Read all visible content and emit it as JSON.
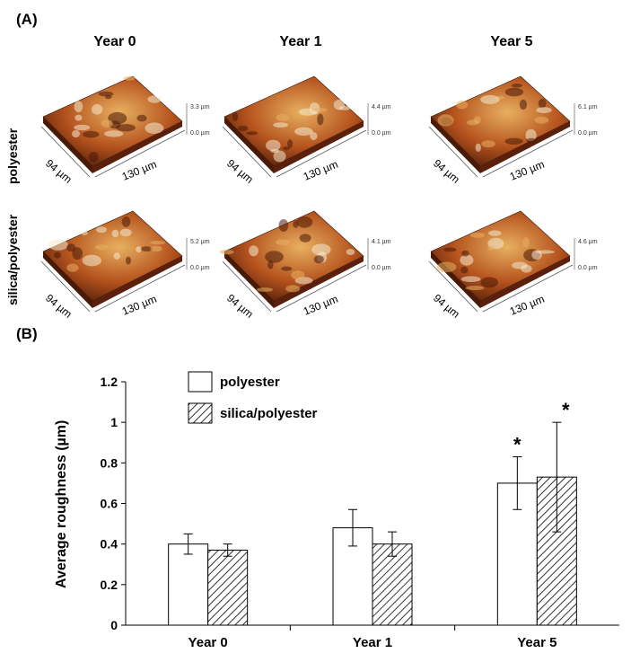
{
  "panel_a": {
    "label": "(A)",
    "columns": [
      "Year 0",
      "Year 1",
      "Year 5"
    ],
    "rows": [
      "polyester",
      "silica/polyester"
    ],
    "tiles": [
      {
        "row": "polyester",
        "col": "Year 0",
        "height_top": "3.3 µm",
        "height_bottom": "0.0 µm",
        "x_dim": "130 µm",
        "y_dim": "94 µm"
      },
      {
        "row": "polyester",
        "col": "Year 1",
        "height_top": "4.4 µm",
        "height_bottom": "0.0 µm",
        "x_dim": "130 µm",
        "y_dim": "94 µm"
      },
      {
        "row": "polyester",
        "col": "Year 5",
        "height_top": "6.1 µm",
        "height_bottom": "0.0 µm",
        "x_dim": "130 µm",
        "y_dim": "94 µm"
      },
      {
        "row": "silica/polyester",
        "col": "Year 0",
        "height_top": "5.2 µm",
        "height_bottom": "0.0 µm",
        "x_dim": "130 µm",
        "y_dim": "94 µm"
      },
      {
        "row": "silica/polyester",
        "col": "Year 1",
        "height_top": "4.1 µm",
        "height_bottom": "0.0 µm",
        "x_dim": "130 µm",
        "y_dim": "94 µm"
      },
      {
        "row": "silica/polyester",
        "col": "Year 5",
        "height_top": "4.6 µm",
        "height_bottom": "0.0 µm",
        "x_dim": "130 µm",
        "y_dim": "94 µm"
      }
    ],
    "colors": {
      "dark": "#4a1a08",
      "mid": "#b5531e",
      "light": "#e8b060",
      "highlight": "#f4ead0"
    }
  },
  "panel_b": {
    "label": "(B)"
  },
  "chart_data": {
    "type": "bar",
    "title": "",
    "xlabel": "",
    "ylabel": "Average roughness (µm)",
    "categories": [
      "Year 0",
      "Year 1",
      "Year 5"
    ],
    "ylim": [
      0,
      1.2
    ],
    "yticks": [
      "0",
      "0.2",
      "0.4",
      "0.6",
      "0.8",
      "1",
      "1.2"
    ],
    "ytick_values": [
      0,
      0.2,
      0.4,
      0.6,
      0.8,
      1.0,
      1.2
    ],
    "series": [
      {
        "name": "polyester",
        "values": [
          0.4,
          0.48,
          0.7
        ],
        "errors": [
          0.05,
          0.09,
          0.13
        ],
        "fill": "#ffffff"
      },
      {
        "name": "silica/polyester",
        "values": [
          0.37,
          0.4,
          0.73
        ],
        "errors": [
          0.03,
          0.06,
          0.27
        ],
        "fill": "hatch"
      }
    ],
    "significance": [
      {
        "series": "polyester",
        "category": "Year 5",
        "mark": "*"
      },
      {
        "series": "silica/polyester",
        "category": "Year 5",
        "mark": "*"
      }
    ],
    "legend_placement": "top-center"
  }
}
